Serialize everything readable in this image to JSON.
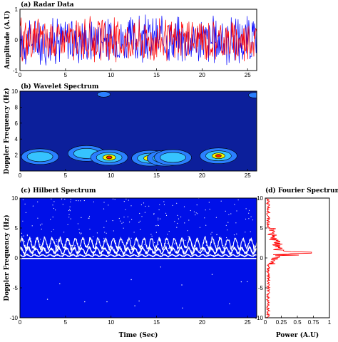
{
  "chart_data": [
    {
      "id": "radar",
      "type": "line",
      "title": "(a) Radar Data",
      "xlabel": "",
      "ylabel": "Amplitude (A.U)",
      "xlim": [
        0,
        26
      ],
      "ylim": [
        -1,
        1
      ],
      "xticks": [
        0,
        5,
        10,
        15,
        20,
        25
      ],
      "yticks": [
        -1,
        0,
        1
      ],
      "grid": false,
      "series": [
        {
          "color": "#0000ff",
          "amplitude": 0.9,
          "points": 420
        },
        {
          "color": "#ff0000",
          "amplitude": 0.8,
          "points": 420
        }
      ]
    },
    {
      "id": "wavelet",
      "type": "heatmap",
      "title": "(b) Wavelet Spectrum",
      "xlabel": "",
      "ylabel": "Doppler Frequency (Hz)",
      "xlim": [
        0,
        26
      ],
      "ylim": [
        0,
        10
      ],
      "xticks": [
        0,
        5,
        10,
        15,
        20,
        25
      ],
      "yticks": [
        2,
        4,
        6,
        8,
        10
      ],
      "background_color": "#0c1f9b",
      "hotspots": [
        {
          "t": 2.2,
          "f": 1.8,
          "level": 2
        },
        {
          "t": 7.3,
          "f": 2.2,
          "level": 2
        },
        {
          "t": 9.8,
          "f": 1.7,
          "level": 4
        },
        {
          "t": 14.3,
          "f": 1.6,
          "level": 3
        },
        {
          "t": 16.0,
          "f": 1.6,
          "level": 3
        },
        {
          "t": 16.8,
          "f": 1.7,
          "level": 2
        },
        {
          "t": 21.8,
          "f": 1.9,
          "level": 4
        },
        {
          "t": 9.2,
          "f": 9.6,
          "level": 1
        },
        {
          "t": 25.8,
          "f": 9.5,
          "level": 1
        }
      ]
    },
    {
      "id": "hilbert",
      "type": "scatter",
      "title": "(c) Hilbert Spectrum",
      "xlabel": "Time (Sec)",
      "ylabel": "Doppler Frequency (Hz)",
      "xlim": [
        0,
        26
      ],
      "ylim": [
        -10,
        10
      ],
      "xticks": [
        0,
        5,
        10,
        15,
        20,
        25
      ],
      "yticks": [
        -10,
        -5,
        0,
        5,
        10
      ],
      "background_color": "#0010e8",
      "point_color": "#ffffff",
      "bands": [
        {
          "center": 2.4,
          "amplitude": 0.9
        },
        {
          "center": 1.2,
          "amplitude": 0.5
        },
        {
          "center": 0.4,
          "amplitude": 0.15
        }
      ]
    },
    {
      "id": "fourier",
      "type": "line",
      "title": "(d) Fourier Spectrum",
      "xlabel": "Power (A.U)",
      "ylabel": "",
      "xlim": [
        0,
        1
      ],
      "ylim": [
        -10,
        10
      ],
      "xticks": [
        0,
        0.25,
        0.5,
        0.75,
        1
      ],
      "xtick_labels": [
        "0",
        "0.25",
        "0.5",
        "0.75",
        "1"
      ],
      "yticks": [
        -10,
        -5,
        0,
        5,
        10
      ],
      "peak": {
        "f": 0.9,
        "power": 0.72
      },
      "line_color": "#ff0000"
    }
  ]
}
